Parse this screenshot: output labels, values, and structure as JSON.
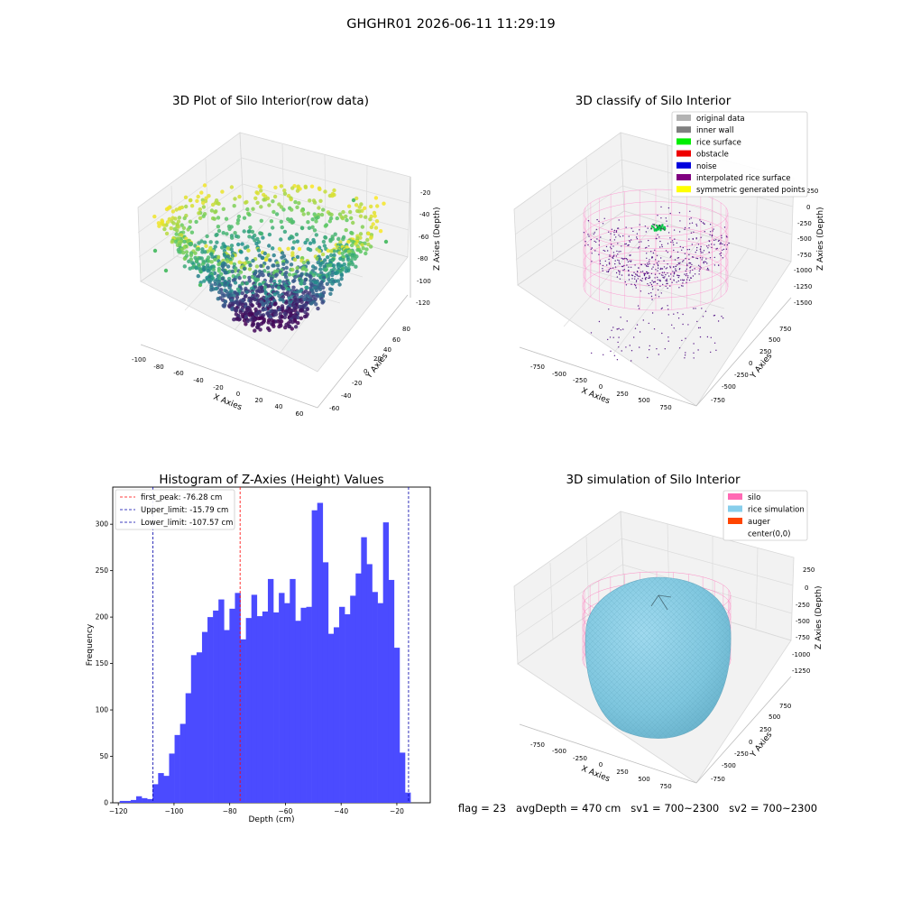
{
  "figure_title": "GHGHR01 2026-06-11 11:29:19",
  "footer": "flag = 23   avgDepth = 470 cm   sv1 = 700~2300   sv2 = 700~2300",
  "panels": {
    "raw": {
      "title": "3D Plot of Silo Interior(row data)",
      "xlabel": "X Axies",
      "ylabel": "Y Axies",
      "zlabel": "Z Axies (Depth)",
      "xticks": [
        "-100",
        "-80",
        "-60",
        "-40",
        "-20",
        "0",
        "20",
        "40",
        "60"
      ],
      "yticks": [
        "-60",
        "-40",
        "-20",
        "0",
        "20",
        "40",
        "60",
        "80"
      ],
      "zticks": [
        "-20",
        "-40",
        "-60",
        "-80",
        "-100",
        "-120"
      ]
    },
    "classify": {
      "title": "3D classify of Silo Interior",
      "xlabel": "X Axies",
      "ylabel": "Y Axies",
      "zlabel": "Z Axies (Depth)",
      "xticks": [
        "-750",
        "-500",
        "-250",
        "0",
        "250",
        "500",
        "750"
      ],
      "yticks": [
        "-750",
        "-500",
        "-250",
        "0",
        "250",
        "500",
        "750"
      ],
      "zticks": [
        "250",
        "0",
        "-250",
        "-500",
        "-750",
        "-1000",
        "-1250",
        "-1500"
      ],
      "legend": [
        {
          "label": "original data",
          "color": "#b3b3b3"
        },
        {
          "label": "inner wall",
          "color": "#808080"
        },
        {
          "label": "rice surface",
          "color": "#00ee00"
        },
        {
          "label": "obstacle",
          "color": "#ee0000"
        },
        {
          "label": "noise",
          "color": "#0000dd"
        },
        {
          "label": "interpolated rice surface",
          "color": "#800080"
        },
        {
          "label": "symmetric generated points",
          "color": "#ffff00"
        }
      ]
    },
    "simulation": {
      "title": "3D simulation of Silo Interior",
      "xlabel": "X Axies",
      "ylabel": "Y Axies",
      "zlabel": "Z Axies (Depth)",
      "xticks": [
        "-750",
        "-500",
        "-250",
        "0",
        "250",
        "500",
        "750"
      ],
      "yticks": [
        "-750",
        "-500",
        "-250",
        "0",
        "250",
        "500",
        "750"
      ],
      "zticks": [
        "250",
        "0",
        "-250",
        "-500",
        "-750",
        "-1000",
        "-1250"
      ],
      "legend": [
        {
          "label": "silo",
          "color": "#ff69b4"
        },
        {
          "label": "rice simulation",
          "color": "#87ceeb"
        },
        {
          "label": "auger",
          "color": "#ff4500"
        },
        {
          "label": "center(0,0)",
          "color": "#ffffff"
        }
      ]
    }
  },
  "chart_data": {
    "type": "bar",
    "title": "Histogram of Z-Axies (Height) Values",
    "xlabel": "Depth (cm)",
    "ylabel": "Frequency",
    "xlim": [
      -122,
      -8
    ],
    "ylim": [
      0,
      340
    ],
    "xticks": [
      -120,
      -100,
      -80,
      -60,
      -40,
      -20
    ],
    "yticks": [
      0,
      50,
      100,
      150,
      200,
      250,
      300
    ],
    "bar_color": "#4b4bff",
    "bin_start": -119.5,
    "bin_width": 1.97,
    "values": [
      2,
      2,
      3,
      7,
      5,
      4,
      20,
      32,
      29,
      53,
      73,
      85,
      118,
      159,
      162,
      184,
      200,
      207,
      219,
      186,
      209,
      226,
      176,
      199,
      224,
      201,
      206,
      241,
      205,
      226,
      215,
      241,
      196,
      210,
      211,
      315,
      323,
      259,
      182,
      189,
      211,
      203,
      223,
      247,
      286,
      257,
      227,
      215,
      302,
      240,
      167,
      54,
      11
    ],
    "vlines": [
      {
        "x": -76.28,
        "label": "first_peak: -76.28 cm",
        "color": "#ff0000"
      },
      {
        "x": -15.79,
        "label": "Upper_limit: -15.79 cm",
        "color": "#0000aa"
      },
      {
        "x": -107.57,
        "label": "Lower_limit: -107.57 cm",
        "color": "#0000aa"
      }
    ]
  }
}
